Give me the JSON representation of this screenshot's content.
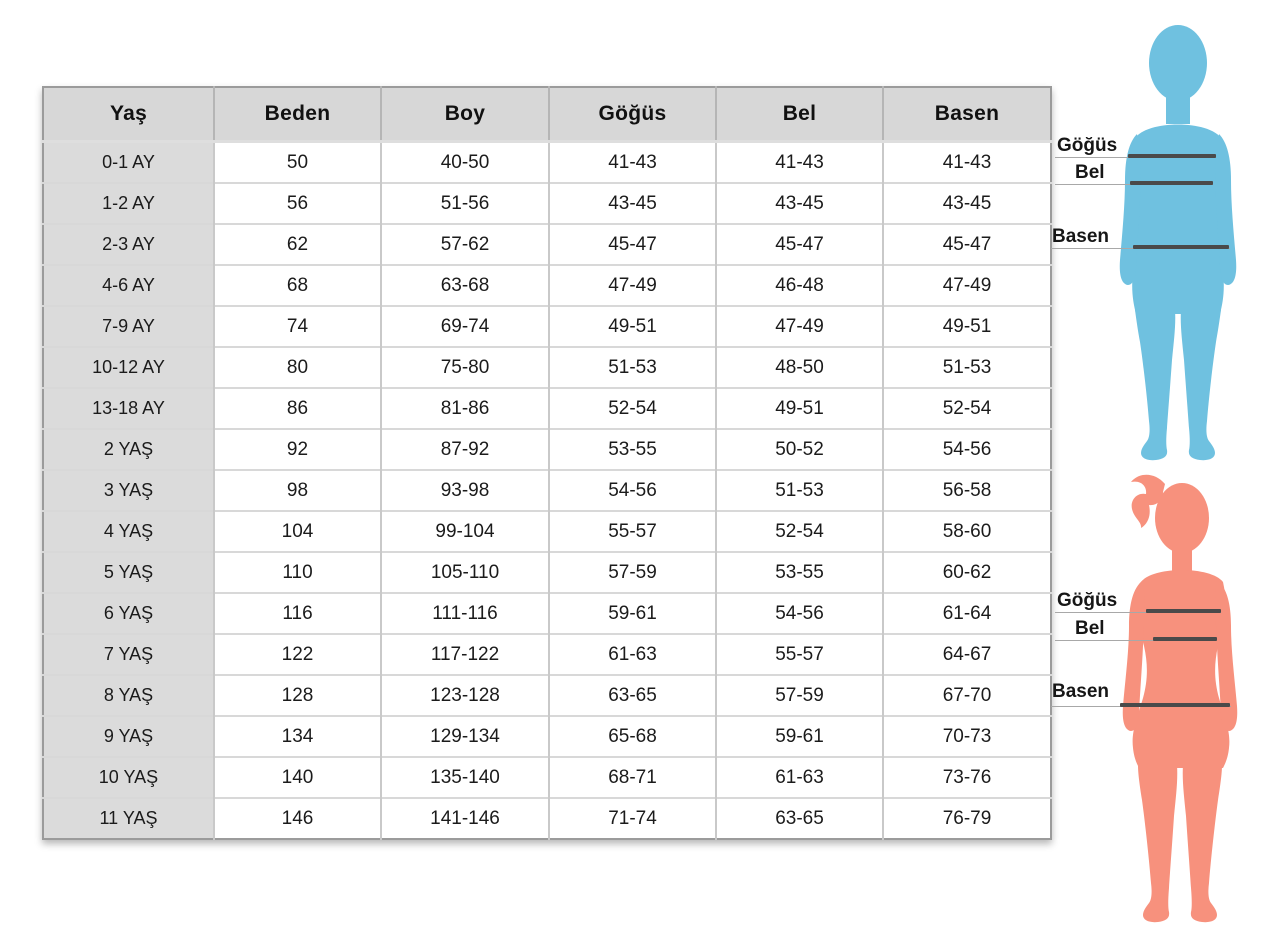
{
  "chart_data": {
    "type": "table",
    "title": "",
    "columns": [
      "Yaş",
      "Beden",
      "Boy",
      "Göğüs",
      "Bel",
      "Basen"
    ],
    "rows": [
      [
        "0-1 AY",
        "50",
        "40-50",
        "41-43",
        "41-43",
        "41-43"
      ],
      [
        "1-2 AY",
        "56",
        "51-56",
        "43-45",
        "43-45",
        "43-45"
      ],
      [
        "2-3 AY",
        "62",
        "57-62",
        "45-47",
        "45-47",
        "45-47"
      ],
      [
        "4-6 AY",
        "68",
        "63-68",
        "47-49",
        "46-48",
        "47-49"
      ],
      [
        "7-9 AY",
        "74",
        "69-74",
        "49-51",
        "47-49",
        "49-51"
      ],
      [
        "10-12 AY",
        "80",
        "75-80",
        "51-53",
        "48-50",
        "51-53"
      ],
      [
        "13-18 AY",
        "86",
        "81-86",
        "52-54",
        "49-51",
        "52-54"
      ],
      [
        "2 YAŞ",
        "92",
        "87-92",
        "53-55",
        "50-52",
        "54-56"
      ],
      [
        "3 YAŞ",
        "98",
        "93-98",
        "54-56",
        "51-53",
        "56-58"
      ],
      [
        "4 YAŞ",
        "104",
        "99-104",
        "55-57",
        "52-54",
        "58-60"
      ],
      [
        "5 YAŞ",
        "110",
        "105-110",
        "57-59",
        "53-55",
        "60-62"
      ],
      [
        "6 YAŞ",
        "116",
        "111-116",
        "59-61",
        "54-56",
        "61-64"
      ],
      [
        "7 YAŞ",
        "122",
        "117-122",
        "61-63",
        "55-57",
        "64-67"
      ],
      [
        "8 YAŞ",
        "128",
        "123-128",
        "63-65",
        "57-59",
        "67-70"
      ],
      [
        "9 YAŞ",
        "134",
        "129-134",
        "65-68",
        "59-61",
        "70-73"
      ],
      [
        "10 YAŞ",
        "140",
        "135-140",
        "68-71",
        "61-63",
        "73-76"
      ],
      [
        "11 YAŞ",
        "146",
        "141-146",
        "71-74",
        "63-65",
        "76-79"
      ]
    ],
    "layout": {
      "header_background": "#d7d7d7",
      "label_column_background": "#dbdbdb",
      "grid": true
    }
  },
  "figures": {
    "boy": {
      "color": "#6fc1e0",
      "measurements": [
        {
          "label": "Göğüs"
        },
        {
          "label": "Bel"
        },
        {
          "label": "Basen"
        }
      ]
    },
    "girl": {
      "color": "#f7917d",
      "measurements": [
        {
          "label": "Göğüs"
        },
        {
          "label": "Bel"
        },
        {
          "label": "Basen"
        }
      ]
    }
  },
  "colors": {
    "measure_line_light": "#a8a8a8",
    "measure_line_dark": "#4a4a4a",
    "table_border": "#9b9b9b",
    "text": "#1b1b1b"
  }
}
